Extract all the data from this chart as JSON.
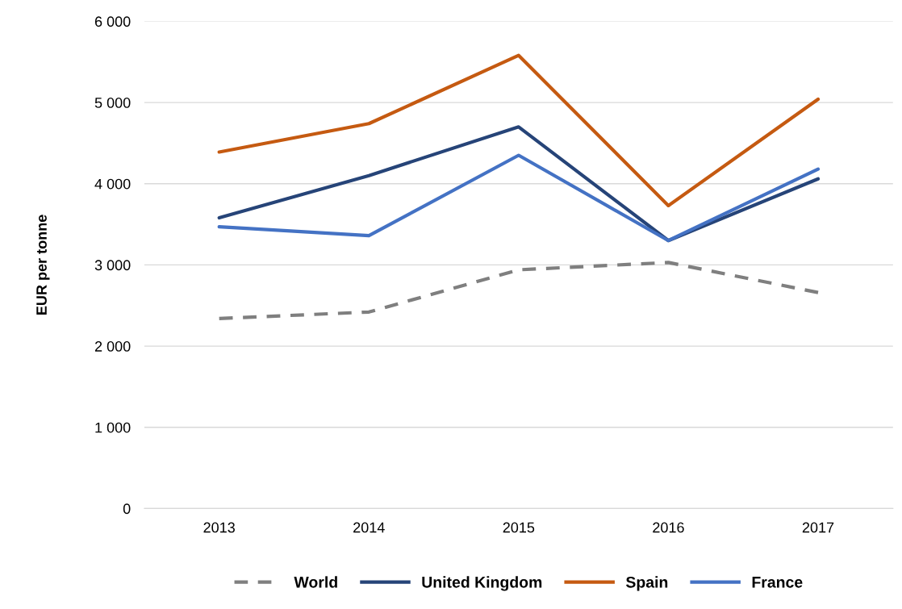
{
  "chart_data": {
    "type": "line",
    "ylabel": "EUR per tonne",
    "categories": [
      "2013",
      "2014",
      "2015",
      "2016",
      "2017"
    ],
    "series": [
      {
        "name": "World",
        "color": "#7f7f7f",
        "line_style": "dashed",
        "values": [
          2340,
          2420,
          2940,
          3030,
          2660
        ]
      },
      {
        "name": "United Kingdom",
        "color": "#264478",
        "line_style": "solid",
        "values": [
          3580,
          4100,
          4700,
          3300,
          4060
        ]
      },
      {
        "name": "Spain",
        "color": "#c55a11",
        "line_style": "solid",
        "values": [
          4390,
          4740,
          5580,
          3730,
          5040
        ]
      },
      {
        "name": "France",
        "color": "#4472c4",
        "line_style": "solid",
        "values": [
          3470,
          3360,
          4350,
          3300,
          4180
        ]
      }
    ],
    "ylim": [
      0,
      6000
    ],
    "yticks": [
      {
        "value": 0,
        "label": "0"
      },
      {
        "value": 1000,
        "label": "1 000"
      },
      {
        "value": 2000,
        "label": "2 000"
      },
      {
        "value": 3000,
        "label": "3 000"
      },
      {
        "value": 4000,
        "label": "4 000"
      },
      {
        "value": 5000,
        "label": "5 000"
      },
      {
        "value": 6000,
        "label": "6 000"
      }
    ],
    "grid": "y",
    "legend": "bottom",
    "marker": "none"
  }
}
